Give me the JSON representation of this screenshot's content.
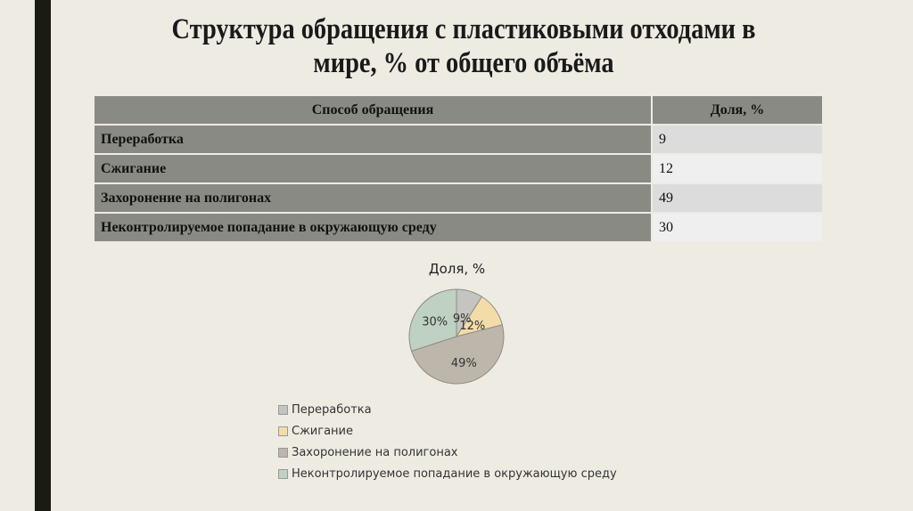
{
  "slide": {
    "title": "Структура обращения с пластиковыми отходами в мире, % от общего объёма"
  },
  "table": {
    "headers": [
      "Способ обращения",
      "Доля, %"
    ],
    "rows": [
      {
        "name": "Переработка",
        "value": "9"
      },
      {
        "name": "Сжигание",
        "value": "12"
      },
      {
        "name": "Захоронение на полигонах",
        "value": "49"
      },
      {
        "name": "Неконтролируемое попадание в окружающую среду",
        "value": "30"
      }
    ]
  },
  "chart_data": {
    "type": "pie",
    "title": "Доля, %",
    "categories": [
      "Переработка",
      "Сжигание",
      "Захоронение на полигонах",
      "Неконтролируемое попадание в окружающую среду"
    ],
    "values": [
      9,
      12,
      49,
      30
    ],
    "labels": [
      "9%",
      "12%",
      "49%",
      "30%"
    ],
    "colors": [
      "#c4c4c0",
      "#f4dca8",
      "#bdb6ab",
      "#bfd1c2"
    ],
    "legend_position": "bottom"
  }
}
